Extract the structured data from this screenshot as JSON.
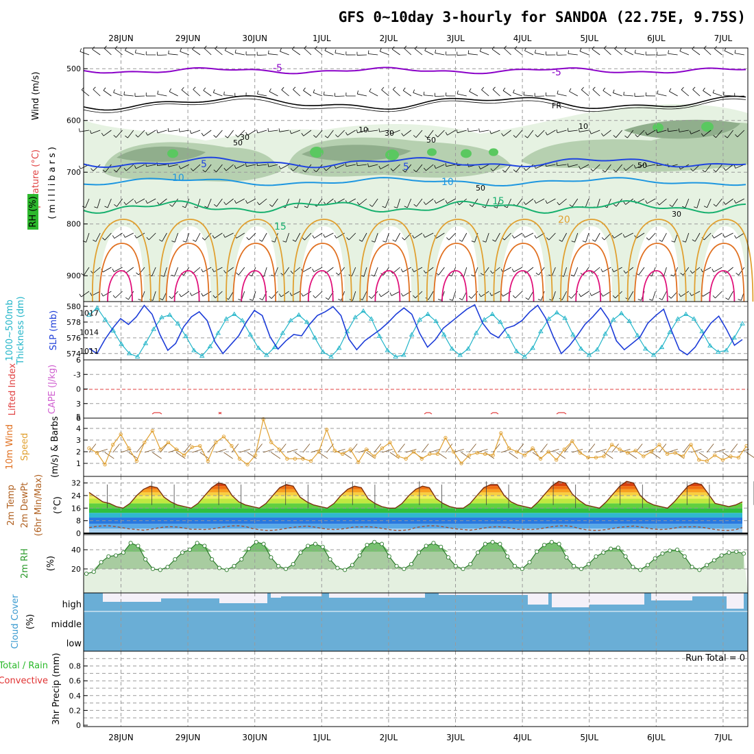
{
  "title": "GFS 0~10day 3-hourly for SANDOA (22.75E, 9.75S)",
  "dates": [
    "28JUN",
    "29JUN",
    "30JUN",
    "1JUL",
    "2JUL",
    "3JUL",
    "4JUL",
    "5JUL",
    "6JUL",
    "7JUL"
  ],
  "colors": {
    "purple": "#8a00c8",
    "black": "#000000",
    "blue": "#1f44e0",
    "lightblue": "#1c96e0",
    "green": "#16b06e",
    "orange": "#e0a030",
    "darkorange": "#e07020",
    "magenta": "#e0107a",
    "rh_light": "#e4f2e0",
    "rh_mid": "#a8c8a0",
    "rh_dark": "#7a9c78",
    "rh_bright": "#5ac860",
    "slp": "#1c3cd8",
    "thick": "#20b4c8",
    "cape": "#d060d0",
    "li": "#e04040",
    "wind10": "#e0a030",
    "barb10": "#7a5020",
    "cloud": "#6aaed6",
    "cloud_bg": "#f4f0f8",
    "rh2m": "#3a9a3a",
    "precip_total": "#28b828",
    "precip_conv": "#e03030"
  },
  "labels": {
    "upper_wind": "Wind (m/s)",
    "upper_temp": "Temperature (°C)",
    "upper_rh": "RH (%)",
    "upper_axis": "(millibars)",
    "thick": "1000~500mb",
    "thick2": "Thickness (dm)",
    "slp": "SLP (mb)",
    "li": "Lifted Index",
    "cape": "CAPE (J/kg)",
    "wind10a": "10m Wind",
    "wind10b": "Speed",
    "wind10c": "(m/s) & Barbs",
    "temp_a": "2m Temp",
    "temp_b": "2m DewPt",
    "temp_c": "(6hr Min/Max)",
    "temp_unit": "(°C)",
    "rh2m": "2m RH",
    "rh2m_unit": "(%)",
    "cloud": "Cloud Cover",
    "cloud_unit": "(%)",
    "cloud_high": "high",
    "cloud_middle": "middle",
    "cloud_low": "low",
    "precip_a": "Total / Rain",
    "precip_b": "Convective",
    "precip_c": "3hr Precip (mm)",
    "run_total": "Run Total = 0"
  },
  "contour_labels": {
    "t_minus5": "-5",
    "t_5": "5",
    "t_10": "10",
    "t_15": "15",
    "t_20": "20",
    "fr": "FR",
    "rh_10": "10",
    "rh_30": "30",
    "rh_50": "50"
  },
  "chart_data": [
    {
      "panel": "upper_air",
      "type": "contour",
      "y_axis": {
        "label": "millibars",
        "ticks": [
          500,
          600,
          700,
          800,
          900
        ],
        "range": [
          460,
          950
        ]
      },
      "x": "3-hourly, 27JUN 12Z to 7JUL 09Z",
      "temperature_contours_c": [
        -5,
        0,
        5,
        10,
        15,
        20
      ],
      "temperature_levels_mb": {
        "-5": 495,
        "0(FR)": 560,
        "5": 670,
        "10": 712,
        "15": 760
      }
    },
    {
      "panel": "slp_thickness",
      "type": "line",
      "slp_ticks": [
        1011,
        1014,
        1017
      ],
      "thickness_ticks": [
        574,
        576,
        578,
        580
      ],
      "slp_mb": [
        1011.4,
        1010.6,
        1012.8,
        1014.6,
        1016.1,
        1015.2,
        1016.4,
        1018.2,
        1016.8,
        1013.6,
        1011.1,
        1012.2,
        1014.8,
        1016.4,
        1017.2,
        1015.8,
        1012.4,
        1010.6,
        1012.0,
        1013.4,
        1015.6,
        1017.4,
        1016.6,
        1013.2,
        1011.3,
        1012.6,
        1013.6,
        1013.4,
        1015.2,
        1016.6,
        1017.2,
        1018.0,
        1016.6,
        1012.9,
        1011.2,
        1012.6,
        1013.5,
        1014.4,
        1015.5,
        1016.8,
        1017.8,
        1016.8,
        1013.8,
        1011.6,
        1012.8,
        1014.6,
        1015.6,
        1016.6,
        1017.6,
        1018.3,
        1015.4,
        1013.8,
        1013.1,
        1014.6,
        1015.0,
        1015.8,
        1017.2,
        1018.2,
        1016.2,
        1013.2,
        1010.6,
        1011.8,
        1013.4,
        1015.2,
        1016.4,
        1017.8,
        1016.0,
        1012.6,
        1011.2,
        1012.2,
        1013.2,
        1015.4,
        1016.6,
        1017.6,
        1014.2,
        1011.2,
        1010.4,
        1011.6,
        1013.6,
        1015.4,
        1016.5,
        1014.4,
        1011.9,
        1012.8
      ],
      "thickness_dm": [
        578.9,
        579.8,
        578.3,
        576.9,
        575.2,
        574.0,
        573.6,
        575.3,
        577.1,
        578.6,
        578.9,
        577.8,
        576.2,
        574.4,
        573.7,
        574.9,
        576.6,
        578.4,
        579.0,
        578.2,
        576.4,
        574.7,
        573.8,
        574.8,
        576.6,
        578.2,
        578.9,
        578.0,
        576.0,
        574.2,
        573.6,
        574.7,
        576.8,
        578.6,
        579.4,
        578.4,
        576.2,
        574.4,
        573.6,
        573.8,
        576.4,
        578.3,
        579.0,
        578.1,
        576.4,
        574.6,
        573.8,
        574.6,
        576.6,
        578.3,
        579.0,
        578.0,
        576.2,
        574.3,
        573.6,
        574.7,
        576.8,
        578.4,
        579.2,
        578.5,
        576.4,
        574.6,
        573.8,
        574.5,
        576.5,
        578.3,
        579.1,
        578.1,
        576.3,
        574.6,
        573.8,
        574.8,
        576.7,
        578.4,
        579.0,
        578.4,
        576.8,
        575.0,
        574.2,
        574.4,
        576.0,
        577.8
      ]
    },
    {
      "panel": "lifted_index_cape",
      "type": "line",
      "ticks": [
        -6,
        -3,
        0,
        3,
        6
      ],
      "cape_ticks": [
        5
      ]
    },
    {
      "panel": "wind_10m",
      "type": "line",
      "y_ticks": [
        1,
        2,
        3,
        4
      ],
      "speed_ms": [
        2.3,
        1.9,
        0.9,
        2.6,
        3.5,
        2.3,
        1.2,
        2.8,
        3.8,
        2.2,
        2.8,
        2.2,
        1.7,
        2.4,
        2.5,
        1.2,
        2.8,
        3.3,
        2.5,
        1.4,
        0.9,
        1.7,
        4.8,
        2.8,
        2.2,
        1.4,
        1.4,
        1.4,
        1.2,
        2.0,
        3.9,
        2.1,
        1.8,
        2.2,
        1.1,
        2.2,
        1.6,
        2.3,
        2.8,
        1.6,
        1.4,
        2.0,
        1.4,
        1.8,
        1.8,
        3.2,
        2.0,
        1.0,
        1.7,
        1.9,
        1.8,
        1.7,
        3.6,
        2.3,
        2.0,
        1.7,
        2.3,
        1.4,
        2.0,
        1.3,
        2.2,
        2.9,
        1.9,
        1.5,
        1.5,
        1.6,
        2.6,
        2.2,
        1.9,
        2.1,
        1.6,
        2.0,
        2.6,
        1.8,
        1.9,
        1.6,
        2.6,
        1.3,
        1.2,
        1.7,
        1.3,
        1.6,
        1.5,
        2.5
      ]
    },
    {
      "panel": "temp_2m",
      "type": "area",
      "y_ticks": [
        0,
        8,
        16,
        24,
        32
      ],
      "temp_c": [
        26,
        23,
        20,
        19,
        17,
        16,
        19,
        24,
        28,
        30,
        29,
        23,
        20,
        18,
        17,
        16,
        19,
        24,
        29,
        32,
        31,
        24,
        20,
        18,
        17,
        16,
        19,
        24,
        29,
        31,
        30,
        23,
        20,
        18,
        17,
        16,
        19,
        24,
        28,
        30,
        29,
        22,
        19,
        17,
        16,
        16,
        19,
        24,
        28,
        30,
        29,
        22,
        19,
        17,
        16,
        16,
        19,
        24,
        29,
        31,
        31,
        24,
        20,
        18,
        17,
        16,
        20,
        25,
        30,
        33,
        32,
        25,
        21,
        18,
        17,
        16,
        20,
        25,
        30,
        33,
        32,
        24,
        20,
        18,
        17,
        16,
        20,
        25,
        30,
        32,
        31,
        25,
        19,
        18,
        17,
        18,
        20
      ]
    },
    {
      "panel": "rh_2m",
      "type": "area",
      "y_ticks": [
        20,
        40
      ],
      "rh_pct": [
        15,
        17,
        27,
        33,
        34,
        37,
        47,
        44,
        30,
        20,
        19,
        22,
        30,
        37,
        40,
        47,
        44,
        30,
        21,
        19,
        23,
        30,
        41,
        48,
        46,
        32,
        23,
        20,
        25,
        37,
        44,
        46,
        43,
        30,
        21,
        19,
        24,
        34,
        45,
        48,
        46,
        33,
        23,
        20,
        25,
        37,
        44,
        47,
        43,
        32,
        23,
        20,
        25,
        37,
        46,
        48,
        46,
        33,
        23,
        20,
        27,
        38,
        45,
        48,
        46,
        32,
        23,
        20,
        25,
        33,
        37,
        41,
        42,
        33,
        22,
        19,
        24,
        31,
        36,
        39,
        40,
        33,
        22,
        19,
        24,
        29,
        34,
        37,
        38,
        36
      ]
    },
    {
      "panel": "cloud_cover",
      "type": "bar",
      "categories": [
        "high",
        "middle",
        "low"
      ]
    },
    {
      "panel": "precip_3hr",
      "type": "bar",
      "y_ticks": [
        0,
        0.2,
        0.4,
        0.6,
        0.8
      ],
      "values": []
    }
  ]
}
